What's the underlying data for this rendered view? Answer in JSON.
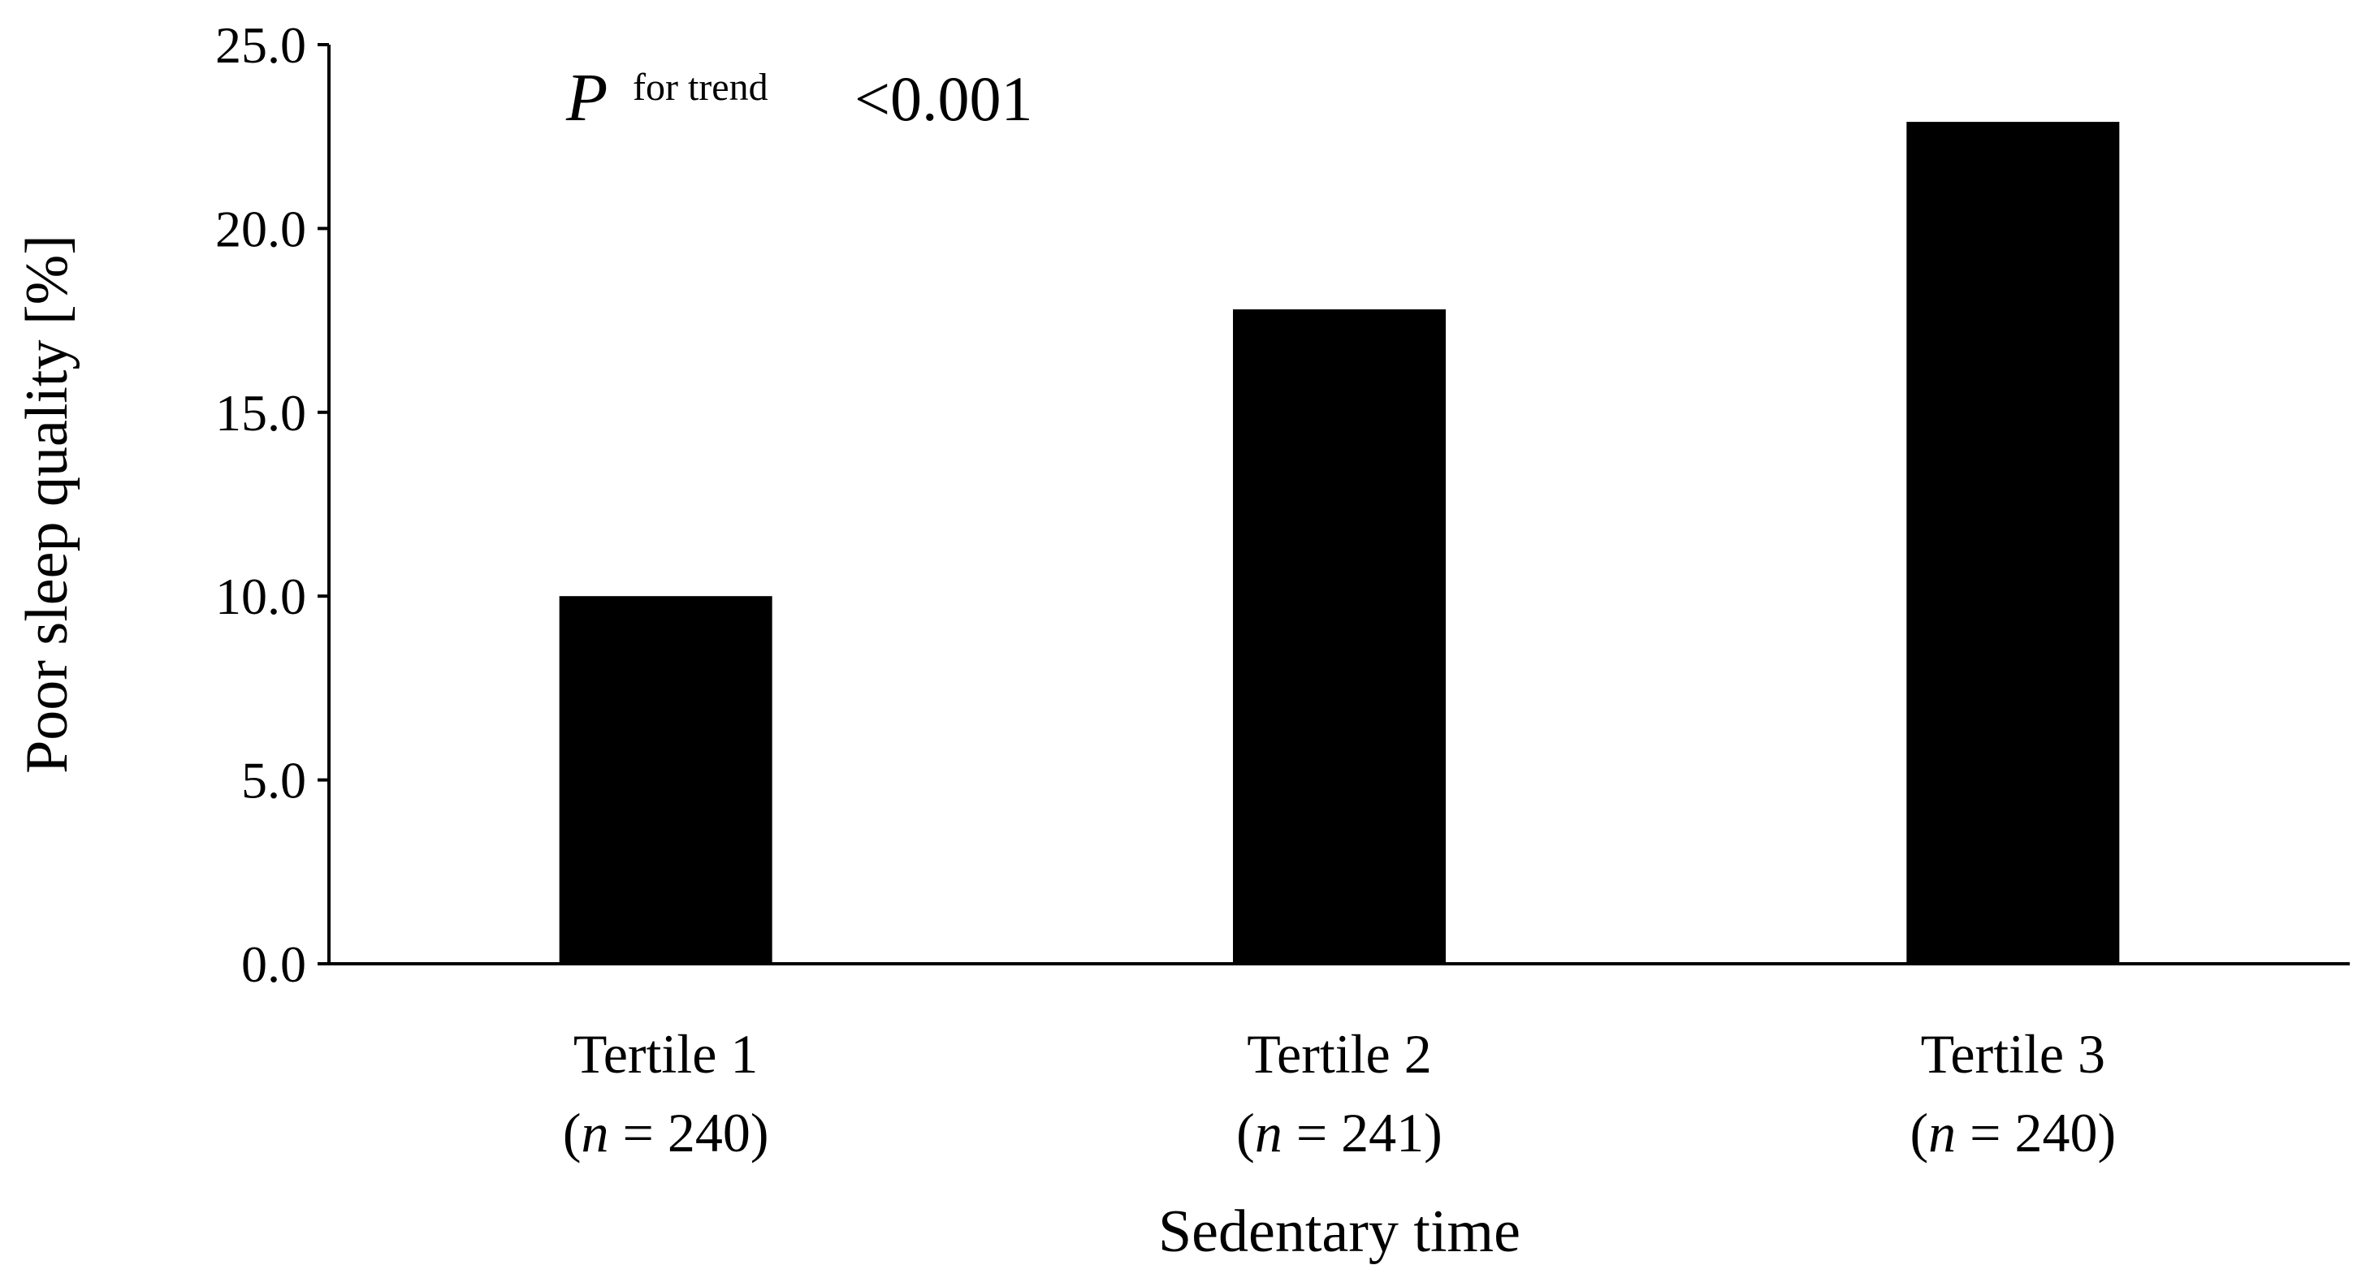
{
  "chart_data": {
    "type": "bar",
    "categories": [
      {
        "label": "Tertile 1",
        "n_prefix": "(",
        "n_var": "n",
        "n_eq": " = 240)"
      },
      {
        "label": "Tertile 2",
        "n_prefix": "(",
        "n_var": "n",
        "n_eq": " = 241)"
      },
      {
        "label": "Tertile 3",
        "n_prefix": "(",
        "n_var": "n",
        "n_eq": " = 240)"
      }
    ],
    "values": [
      10.0,
      17.8,
      22.9
    ],
    "xlabel": "Sedentary time",
    "ylabel": "Poor sleep quality [%]",
    "ylim": [
      0,
      25
    ],
    "yticks": [
      "0.0",
      "5.0",
      "10.0",
      "15.0",
      "20.0",
      "25.0"
    ],
    "ytick_values": [
      0,
      5,
      10,
      15,
      20,
      25
    ],
    "bar_color": "#000000",
    "grid": false,
    "legend": "none",
    "annotation": {
      "p": "P",
      "sup": "for trend",
      "value": "<0.001"
    }
  }
}
